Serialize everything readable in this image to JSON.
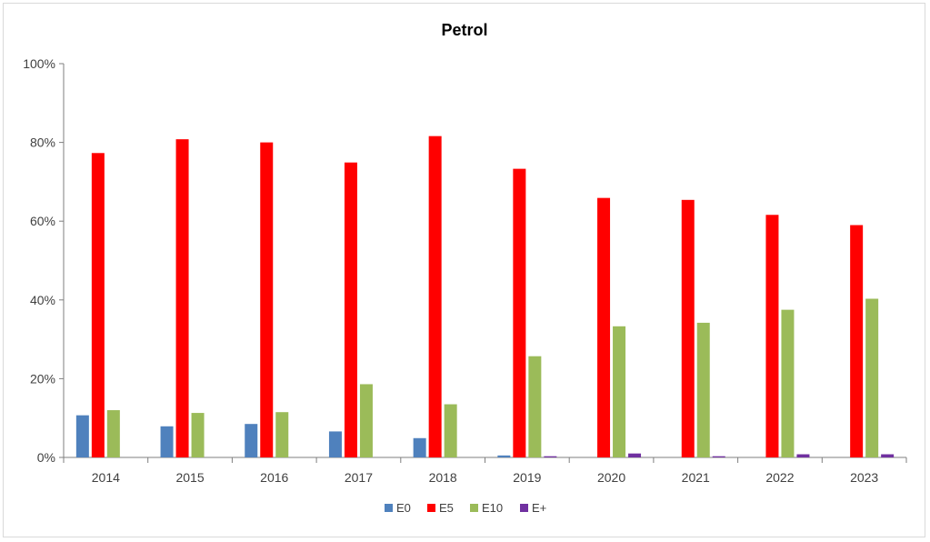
{
  "chart_data": {
    "type": "bar",
    "title": "Petrol",
    "xlabel": "",
    "ylabel": "",
    "ylim": [
      0,
      100
    ],
    "yticks": [
      "0%",
      "20%",
      "40%",
      "60%",
      "80%",
      "100%"
    ],
    "ytick_values": [
      0,
      20,
      40,
      60,
      80,
      100
    ],
    "grid": false,
    "legend_position": "bottom",
    "categories": [
      "2014",
      "2015",
      "2016",
      "2017",
      "2018",
      "2019",
      "2020",
      "2021",
      "2022",
      "2023"
    ],
    "series": [
      {
        "name": "E0",
        "color": "#4f81bd",
        "values": [
          10.7,
          7.9,
          8.5,
          6.6,
          4.9,
          0.5,
          0.0,
          0.0,
          0.0,
          0.0
        ]
      },
      {
        "name": "E5",
        "color": "#ff0000",
        "values": [
          77.3,
          80.8,
          80.0,
          74.9,
          81.6,
          73.3,
          65.9,
          65.4,
          61.6,
          59.0
        ]
      },
      {
        "name": "E10",
        "color": "#9bbb59",
        "values": [
          12.0,
          11.3,
          11.5,
          18.6,
          13.5,
          25.7,
          33.3,
          34.2,
          37.5,
          40.3
        ]
      },
      {
        "name": "E+",
        "color": "#7030a0",
        "values": [
          0.0,
          0.0,
          0.0,
          0.0,
          0.0,
          0.3,
          1.0,
          0.3,
          0.8,
          0.8
        ]
      }
    ]
  }
}
